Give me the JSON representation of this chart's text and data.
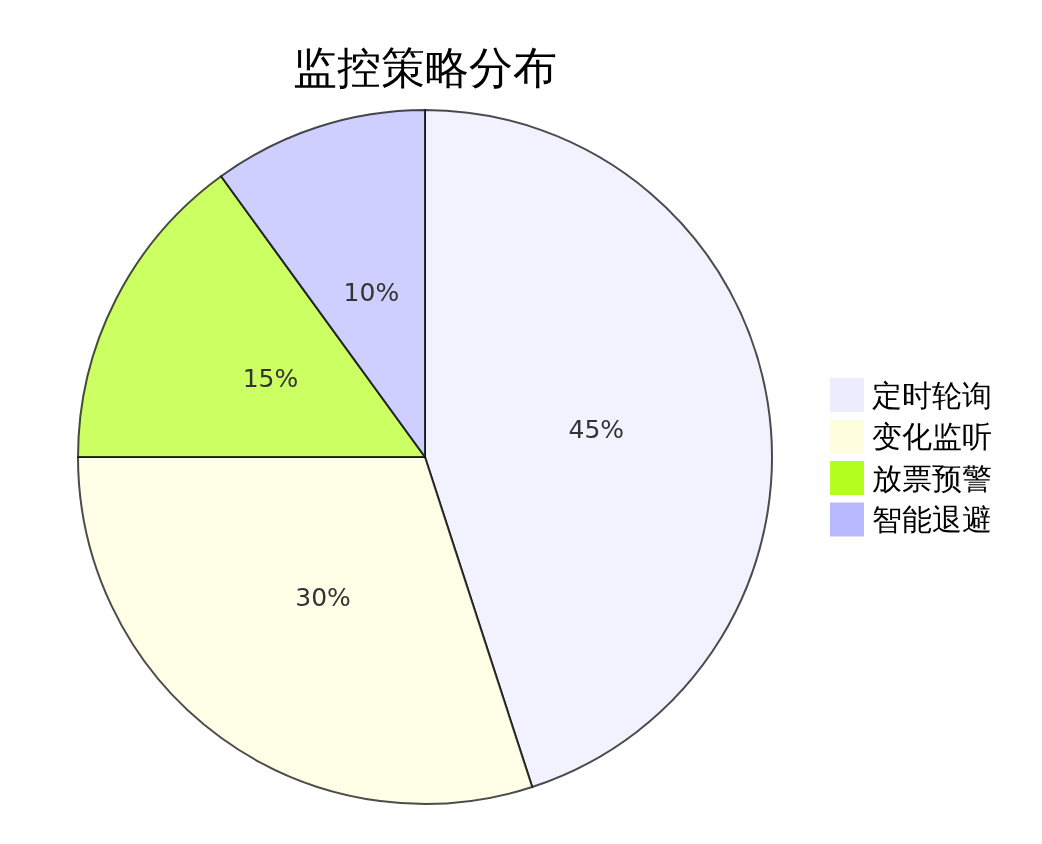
{
  "chart_data": {
    "type": "pie",
    "title": "监控策略分布",
    "categories": [
      "定时轮询",
      "变化监听",
      "放票预警",
      "智能退避"
    ],
    "values": [
      45,
      30,
      15,
      10
    ],
    "value_labels": [
      "45%",
      "30%",
      "15%",
      "10%"
    ],
    "colors": [
      "#ececff",
      "#ffffde",
      "#b5ff20",
      "#b9b9ff"
    ],
    "legend": "right"
  }
}
